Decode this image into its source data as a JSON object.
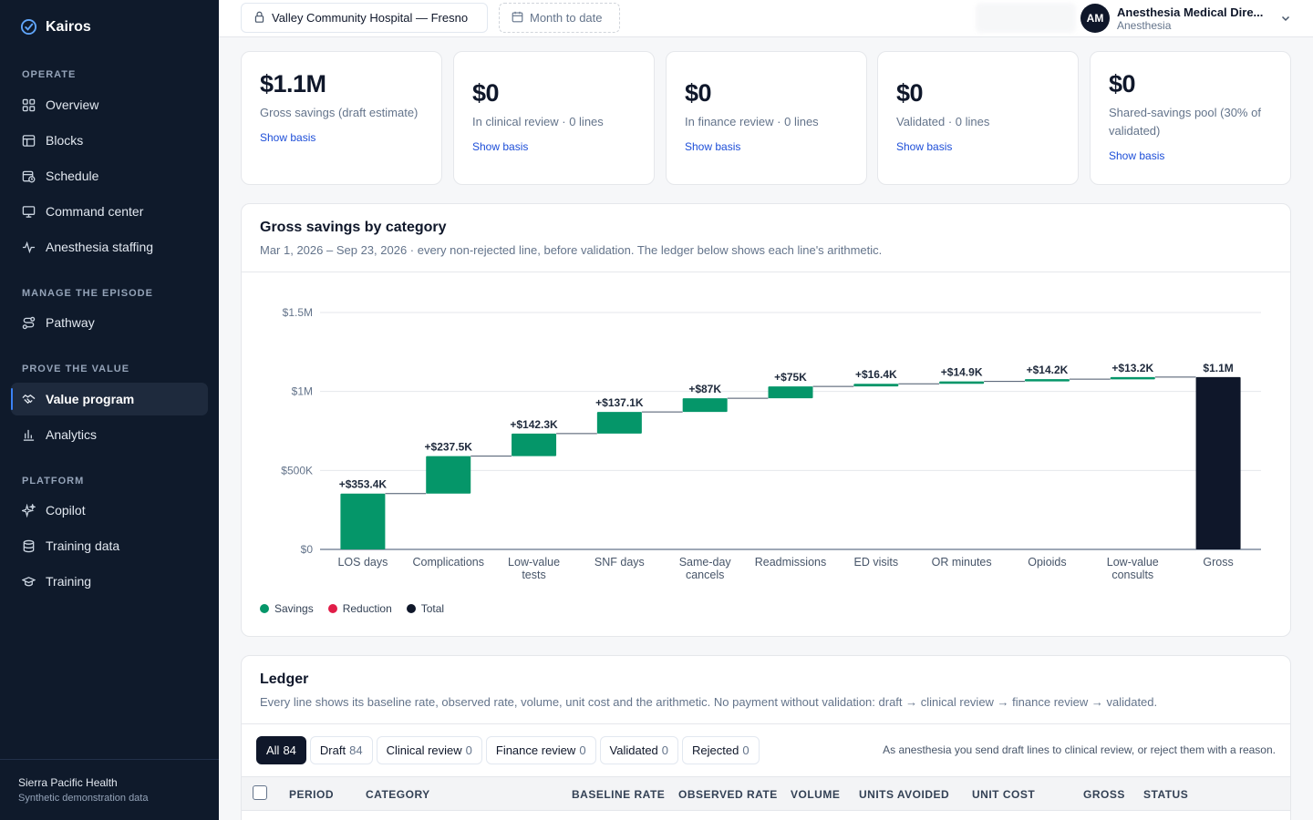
{
  "app": {
    "brand": "Kairos",
    "accent": "#3b82f6",
    "sidebar_bg": "#0f1a2b"
  },
  "sidebar": {
    "sections": [
      {
        "title": "OPERATE",
        "items": [
          {
            "label": "Overview",
            "icon": "grid-icon"
          },
          {
            "label": "Blocks",
            "icon": "blocks-icon"
          },
          {
            "label": "Schedule",
            "icon": "calendar-clock-icon"
          },
          {
            "label": "Command center",
            "icon": "monitor-icon"
          },
          {
            "label": "Anesthesia staffing",
            "icon": "pulse-icon"
          }
        ]
      },
      {
        "title": "MANAGE THE EPISODE",
        "items": [
          {
            "label": "Pathway",
            "icon": "route-icon"
          }
        ]
      },
      {
        "title": "PROVE THE VALUE",
        "items": [
          {
            "label": "Value program",
            "icon": "handshake-icon",
            "active": true
          },
          {
            "label": "Analytics",
            "icon": "bar-chart-icon"
          }
        ]
      },
      {
        "title": "PLATFORM",
        "items": [
          {
            "label": "Copilot",
            "icon": "sparkles-icon"
          },
          {
            "label": "Training data",
            "icon": "database-icon"
          },
          {
            "label": "Training",
            "icon": "graduation-cap-icon"
          }
        ]
      }
    ],
    "footer": {
      "org": "Sierra Pacific Health",
      "note": "Synthetic demonstration data"
    }
  },
  "topbar": {
    "hospital": "Valley Community Hospital — Fresno",
    "date_range": "Month to date",
    "user": {
      "initials": "AM",
      "name": "Anesthesia Medical Dire...",
      "role": "Anesthesia"
    }
  },
  "kpis": [
    {
      "value": "$1.1M",
      "label": "Gross savings (draft estimate)",
      "link": "Show basis"
    },
    {
      "value": "$0",
      "label": "In clinical review · 0 lines",
      "link": "Show basis"
    },
    {
      "value": "$0",
      "label": "In finance review · 0 lines",
      "link": "Show basis"
    },
    {
      "value": "$0",
      "label": "Validated · 0 lines",
      "link": "Show basis"
    },
    {
      "value": "$0",
      "label": "Shared-savings pool (30% of validated)",
      "link": "Show basis"
    }
  ],
  "chart_panel": {
    "title": "Gross savings by category",
    "subtitle": "Mar 1, 2026 – Sep 23, 2026 · every non-rejected line, before validation. The ledger below shows each line's arithmetic."
  },
  "chart_data": {
    "type": "bar",
    "subtype": "waterfall",
    "title": "Gross savings by category",
    "categories": [
      "LOS days",
      "Complications",
      "Low-value tests",
      "SNF days",
      "Same-day cancels",
      "Readmissions",
      "ED visits",
      "OR minutes",
      "Opioids",
      "Low-value consults",
      "Gross"
    ],
    "category_lines": [
      [
        "LOS days"
      ],
      [
        "Complications"
      ],
      [
        "Low-value",
        "tests"
      ],
      [
        "SNF days"
      ],
      [
        "Same-day",
        "cancels"
      ],
      [
        "Readmissions"
      ],
      [
        "ED visits"
      ],
      [
        "OR minutes"
      ],
      [
        "Opioids"
      ],
      [
        "Low-value",
        "consults"
      ],
      [
        "Gross"
      ]
    ],
    "values": [
      353400,
      237500,
      142300,
      137100,
      87000,
      75000,
      16400,
      14900,
      14200,
      13200,
      1091000
    ],
    "kinds": [
      "savings",
      "savings",
      "savings",
      "savings",
      "savings",
      "savings",
      "savings",
      "savings",
      "savings",
      "savings",
      "total"
    ],
    "data_labels": [
      "+$353.4K",
      "+$237.5K",
      "+$142.3K",
      "+$137.1K",
      "+$87K",
      "+$75K",
      "+$16.4K",
      "+$14.9K",
      "+$14.2K",
      "+$13.2K",
      "$1.1M"
    ],
    "y_ticks": [
      0,
      500000,
      1000000,
      1500000
    ],
    "y_tick_labels": [
      "$0",
      "$500K",
      "$1M",
      "$1.5M"
    ],
    "ylim": [
      0,
      1500000
    ],
    "grid": true,
    "legend_position": "bottom-left",
    "legend": [
      {
        "label": "Savings",
        "color": "#059669"
      },
      {
        "label": "Reduction",
        "color": "#e11d48"
      },
      {
        "label": "Total",
        "color": "#0f172a"
      }
    ],
    "colors": {
      "savings": "#059669",
      "reduction": "#e11d48",
      "total": "#0f172a"
    }
  },
  "ledger": {
    "title": "Ledger",
    "subtitle": "Every line shows its baseline rate, observed rate, volume, unit cost and the arithmetic. No payment without validation: draft → clinical review → finance review → validated.",
    "filters": [
      {
        "label": "All",
        "count": "84",
        "active": true
      },
      {
        "label": "Draft",
        "count": "84"
      },
      {
        "label": "Clinical review",
        "count": "0"
      },
      {
        "label": "Finance review",
        "count": "0"
      },
      {
        "label": "Validated",
        "count": "0"
      },
      {
        "label": "Rejected",
        "count": "0"
      }
    ],
    "note": "As anesthesia you send draft lines to clinical review, or reject them with a reason.",
    "columns": [
      "PERIOD",
      "CATEGORY",
      "BASELINE RATE",
      "OBSERVED RATE",
      "VOLUME",
      "UNITS AVOIDED",
      "UNIT COST",
      "GROSS",
      "STATUS"
    ]
  }
}
